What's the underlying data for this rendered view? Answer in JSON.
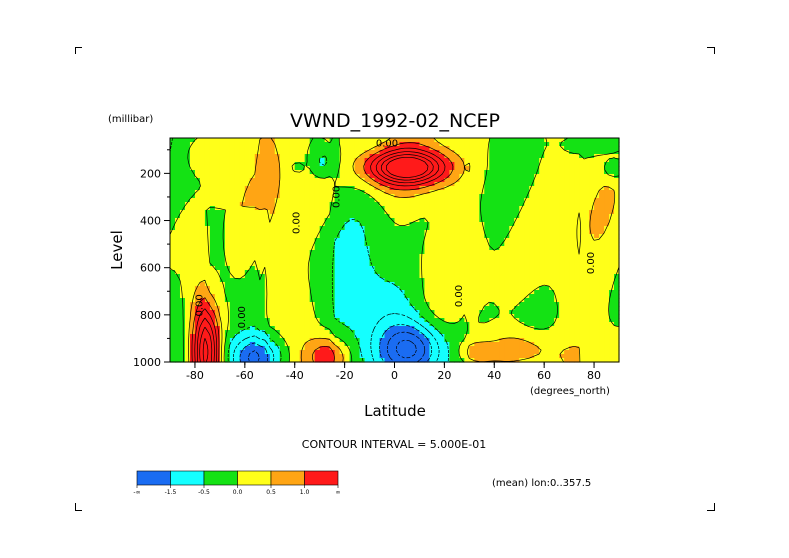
{
  "chart_data": {
    "type": "heatmap",
    "title": "VWND_1992-02_NCEP",
    "xlabel": "Latitude",
    "xunits": "(degrees_north)",
    "ylabel": "Level",
    "yunits": "(millibar)",
    "xlim": [
      -90,
      90
    ],
    "ylim": [
      1000,
      50
    ],
    "y_inverted": true,
    "x_ticks": [
      -80,
      -60,
      -40,
      -20,
      0,
      20,
      40,
      60,
      80
    ],
    "y_ticks": [
      200,
      400,
      600,
      800,
      1000
    ],
    "contour_interval_text": "CONTOUR INTERVAL = 5.000E-01",
    "mean_text": "(mean) lon:0..357.5",
    "contour_labels": [
      {
        "text": "0.00",
        "x": -3,
        "y": 85
      },
      {
        "text": "0.00",
        "x": -22,
        "y": 300
      },
      {
        "text": "0.00",
        "x": -38,
        "y": 410
      },
      {
        "text": "0.00",
        "x": -77,
        "y": 760
      },
      {
        "text": "0.00",
        "x": -60,
        "y": 810
      },
      {
        "text": "0.00",
        "x": 27,
        "y": 720
      },
      {
        "text": "0.00",
        "x": 80,
        "y": 580
      }
    ],
    "legend": {
      "labels": [
        "-∞",
        "-1.5",
        "-0.5",
        "0.0",
        "0.5",
        "1.0",
        "∞"
      ],
      "bins": [
        {
          "range": [
            -3,
            -1.5
          ],
          "color": "#1a6cf2"
        },
        {
          "range": [
            -1.5,
            -0.5
          ],
          "color": "#14ffff"
        },
        {
          "range": [
            -0.5,
            0.0
          ],
          "color": "#14e214"
        },
        {
          "range": [
            0.0,
            0.5
          ],
          "color": "#ffff19"
        },
        {
          "range": [
            0.5,
            1.0
          ],
          "color": "#ffa514"
        },
        {
          "range": [
            1.0,
            3.0
          ],
          "color": "#ff1a1a"
        }
      ]
    },
    "field_features": [
      {
        "kind": "gauss",
        "x": 5,
        "y": 175,
        "sx": 10,
        "sy": 45,
        "amp": 3.0
      },
      {
        "kind": "gauss",
        "x": 5,
        "y": 185,
        "sx": 16,
        "sy": 80,
        "amp": 0.9
      },
      {
        "kind": "gauss",
        "x": 7,
        "y": 950,
        "sx": 9,
        "sy": 80,
        "amp": -2.4
      },
      {
        "kind": "gauss",
        "x": -3,
        "y": 820,
        "sx": 12,
        "sy": 180,
        "amp": -1.0
      },
      {
        "kind": "gauss",
        "x": -55,
        "y": 985,
        "sx": 8,
        "sy": 70,
        "amp": -2.2
      },
      {
        "kind": "gauss",
        "x": -75,
        "y": 960,
        "sx": 3.5,
        "sy": 130,
        "amp": 2.6
      },
      {
        "kind": "gauss",
        "x": -78,
        "y": 880,
        "sx": 5,
        "sy": 200,
        "amp": 1.1
      },
      {
        "kind": "gauss",
        "x": -27,
        "y": 980,
        "sx": 6,
        "sy": 60,
        "amp": 1.5
      },
      {
        "kind": "gauss",
        "x": 50,
        "y": 950,
        "sx": 11,
        "sy": 60,
        "amp": 1.0
      },
      {
        "kind": "gauss",
        "x": 32,
        "y": 960,
        "sx": 5,
        "sy": 40,
        "amp": 0.7
      },
      {
        "kind": "gauss",
        "x": -28,
        "y": 150,
        "sx": 4,
        "sy": 50,
        "amp": -0.9
      },
      {
        "kind": "gauss",
        "x": -39,
        "y": 175,
        "sx": 1.5,
        "sy": 12,
        "amp": -0.8
      },
      {
        "kind": "gauss",
        "x": 82,
        "y": 80,
        "sx": 9,
        "sy": 30,
        "amp": -0.6
      },
      {
        "kind": "gauss",
        "x": 88,
        "y": 180,
        "sx": 3,
        "sy": 30,
        "amp": -0.9
      },
      {
        "kind": "gauss",
        "x": -75,
        "y": 120,
        "sx": 6,
        "sy": 50,
        "amp": 0.6
      }
    ]
  }
}
